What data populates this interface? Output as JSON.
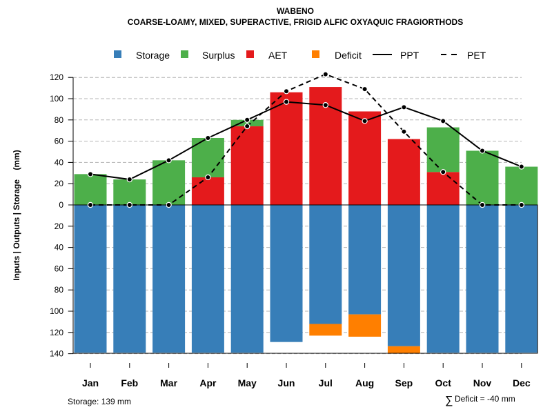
{
  "chart_data": {
    "type": "bar",
    "title": "WABENO",
    "subtitle": "COARSE-LOAMY, MIXED, SUPERACTIVE, FRIGID ALFIC OXYAQUIC FRAGIORTHODS",
    "ylabel": "Inputs | Outputs | Storage    (mm)",
    "categories": [
      "Jan",
      "Feb",
      "Mar",
      "Apr",
      "May",
      "Jun",
      "Jul",
      "Aug",
      "Sep",
      "Oct",
      "Nov",
      "Dec"
    ],
    "ylim": [
      -140,
      130
    ],
    "yticks": [
      120,
      100,
      80,
      60,
      40,
      20,
      0,
      -20,
      -40,
      -60,
      -80,
      -100,
      -120,
      -140
    ],
    "ytick_labels": [
      "120",
      "100",
      "80",
      "60",
      "40",
      "20",
      "0",
      "20",
      "40",
      "60",
      "80",
      "100",
      "120",
      "140"
    ],
    "grid": true,
    "legend_position": "top",
    "legend": [
      {
        "name": "Storage",
        "kind": "box",
        "color": "#377EB8"
      },
      {
        "name": "Surplus",
        "kind": "box",
        "color": "#4DAF4A"
      },
      {
        "name": "AET",
        "kind": "box",
        "color": "#E41A1C"
      },
      {
        "name": "Deficit",
        "kind": "box",
        "color": "#FF7F00"
      },
      {
        "name": "PPT",
        "kind": "solid-line",
        "color": "#000000"
      },
      {
        "name": "PET",
        "kind": "dashed-line",
        "color": "#000000"
      }
    ],
    "series": [
      {
        "name": "Storage",
        "color": "#377EB8",
        "values": [
          139,
          139,
          139,
          139,
          139,
          129,
          112,
          103,
          133,
          139,
          139,
          139
        ]
      },
      {
        "name": "Deficit",
        "color": "#FF7F00",
        "values": [
          0,
          0,
          0,
          0,
          0,
          0,
          11,
          21,
          7,
          0,
          0,
          0
        ]
      },
      {
        "name": "AET",
        "color": "#E41A1C",
        "values": [
          0,
          0,
          0,
          26,
          74,
          106,
          111,
          88,
          62,
          31,
          0,
          0
        ]
      },
      {
        "name": "Surplus",
        "color": "#4DAF4A",
        "values": [
          29,
          24,
          42,
          37,
          6,
          0,
          0,
          0,
          0,
          42,
          51,
          36
        ]
      },
      {
        "name": "PPT",
        "color": "#000000",
        "values": [
          29,
          24,
          42,
          63,
          80,
          97,
          94,
          79,
          92,
          79,
          51,
          36
        ]
      },
      {
        "name": "PET",
        "color": "#000000",
        "values": [
          0,
          0,
          0,
          26,
          74,
          107,
          123,
          109,
          69,
          31,
          0,
          0
        ]
      }
    ],
    "annotations": {
      "storage_note": "Storage: 139 mm",
      "deficit_symbol": "∑",
      "deficit_note": "Deficit = -40 mm"
    }
  }
}
